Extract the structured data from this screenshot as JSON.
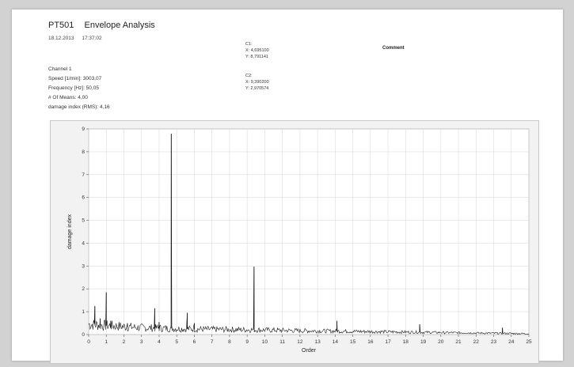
{
  "header": {
    "title_id": "PT501",
    "title": "Envelope Analysis",
    "date": "18.12.2013",
    "time": "17:37:02",
    "comment_label": "Comment"
  },
  "cursors": {
    "c1": {
      "label": "C1:",
      "x": "X: 4,695100",
      "y": "Y: 8,791141"
    },
    "c2": {
      "label": "C2:",
      "x": "X: 9,390200",
      "y": "Y: 2,970574"
    }
  },
  "info": {
    "channel": "Channel 1",
    "speed": "Speed [1/min]: 3003,07",
    "frequency": "Frequency [Hz]: 50,05",
    "means": "# Of Means: 4,00",
    "damage": "damage index (RMS): 4,16"
  },
  "colors": {
    "line": "#1a1a1a",
    "grid": "#dcdcdc",
    "plot_bg": "#ffffff"
  },
  "chart_data": {
    "type": "line",
    "title": "",
    "xlabel": "Order",
    "ylabel": "damage index",
    "xlim": [
      0,
      25
    ],
    "ylim": [
      0,
      9
    ],
    "xticks": [
      0,
      1,
      2,
      3,
      4,
      5,
      6,
      7,
      8,
      9,
      10,
      11,
      12,
      13,
      14,
      15,
      16,
      17,
      18,
      19,
      20,
      21,
      22,
      23,
      24,
      25
    ],
    "yticks": [
      0,
      1,
      2,
      3,
      4,
      5,
      6,
      7,
      8,
      9
    ],
    "grid": true,
    "baseline": [
      [
        0,
        0.45
      ],
      [
        1,
        0.4
      ],
      [
        2,
        0.35
      ],
      [
        3,
        0.3
      ],
      [
        4,
        0.28
      ],
      [
        5,
        0.26
      ],
      [
        6,
        0.24
      ],
      [
        8,
        0.22
      ],
      [
        10,
        0.2
      ],
      [
        12,
        0.17
      ],
      [
        14,
        0.15
      ],
      [
        16,
        0.13
      ],
      [
        18,
        0.11
      ],
      [
        20,
        0.09
      ],
      [
        22,
        0.07
      ],
      [
        24,
        0.05
      ],
      [
        25,
        0.04
      ]
    ],
    "peaks": [
      {
        "x": 0.35,
        "y": 1.25
      },
      {
        "x": 0.65,
        "y": 0.7
      },
      {
        "x": 1.0,
        "y": 1.85
      },
      {
        "x": 1.25,
        "y": 0.6
      },
      {
        "x": 2.2,
        "y": 0.5
      },
      {
        "x": 3.75,
        "y": 1.15
      },
      {
        "x": 4.0,
        "y": 0.55
      },
      {
        "x": 4.69,
        "y": 8.79
      },
      {
        "x": 5.6,
        "y": 0.95
      },
      {
        "x": 6.0,
        "y": 0.5
      },
      {
        "x": 9.39,
        "y": 2.97
      },
      {
        "x": 14.1,
        "y": 0.6
      },
      {
        "x": 18.8,
        "y": 0.45
      },
      {
        "x": 23.5,
        "y": 0.3
      }
    ]
  }
}
